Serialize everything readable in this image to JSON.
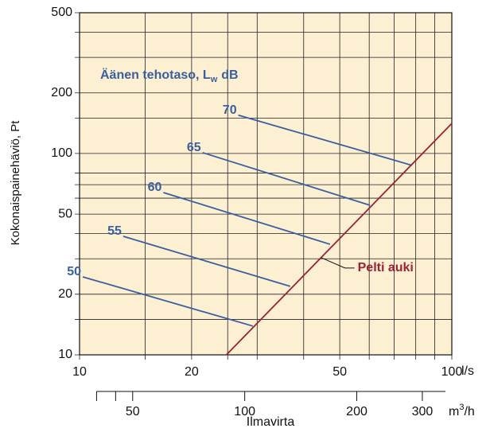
{
  "chart_data": {
    "type": "line",
    "log_x": true,
    "log_y": true,
    "grid": true,
    "ylabel": "Kokonaispainehäviö, Pt",
    "xlabel": "Ilmavirta",
    "x_unit": "l/s",
    "x2_unit_base": "m",
    "x2_unit_sup": "3",
    "x2_unit_rest": "/h",
    "legend_title_main": "Äänen tehotaso, L",
    "legend_title_sub": "w",
    "legend_title_end": "dB",
    "background": "#fcefd2",
    "xlim": [
      10,
      100
    ],
    "ylim": [
      10,
      500
    ],
    "xticks": [
      10,
      20,
      50,
      100
    ],
    "xgrid": [
      10,
      15,
      20,
      25,
      30,
      40,
      50,
      60,
      70,
      80,
      90,
      100
    ],
    "yticks": [
      10,
      20,
      50,
      100,
      200,
      500
    ],
    "ygrid": [
      10,
      15,
      20,
      30,
      40,
      50,
      60,
      70,
      80,
      100,
      150,
      200,
      300,
      400,
      500
    ],
    "x2_factor": 3.6,
    "x2ticks": [
      50,
      100,
      200,
      300
    ],
    "x2minor": [
      40,
      45
    ],
    "series": [
      {
        "name": "50",
        "color": "#3a5fa0",
        "x": [
          10.2,
          29.2
        ],
        "values": [
          24.4,
          13.9
        ]
      },
      {
        "name": "55",
        "color": "#3a5fa0",
        "x": [
          13.1,
          36.8
        ],
        "values": [
          38.8,
          21.9
        ]
      },
      {
        "name": "60",
        "color": "#3a5fa0",
        "x": [
          16.8,
          47.1
        ],
        "values": [
          64,
          35.4
        ]
      },
      {
        "name": "65",
        "color": "#3a5fa0",
        "x": [
          21.4,
          60.3
        ],
        "values": [
          101,
          55.3
        ]
      },
      {
        "name": "70",
        "color": "#3a5fa0",
        "x": [
          26.7,
          78.2
        ],
        "values": [
          155,
          87.3
        ]
      },
      {
        "name": "Pelti auki",
        "color": "#9b2335",
        "x": [
          24.8,
          100
        ],
        "values": [
          10,
          141
        ]
      }
    ]
  }
}
